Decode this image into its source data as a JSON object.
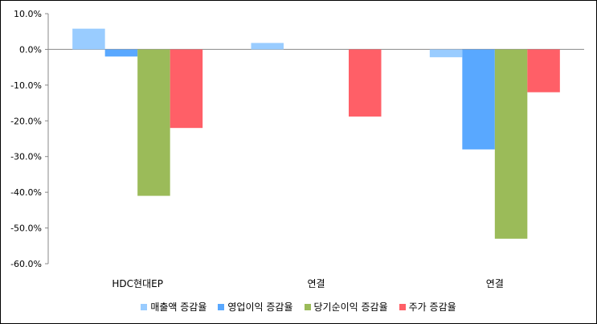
{
  "chart_data": {
    "type": "bar",
    "categories": [
      "HDC현대EP",
      "연결",
      "연결"
    ],
    "series": [
      {
        "name": "매출액 증감율",
        "color": "#99ccff",
        "values": [
          5.8,
          1.8,
          -2.2
        ]
      },
      {
        "name": "영업이익 증감율",
        "color": "#59a8ff",
        "values": [
          -2.0,
          0.0,
          -28.0
        ]
      },
      {
        "name": "당기순이익 증감율",
        "color": "#9bbb59",
        "values": [
          -41.0,
          0.0,
          -53.0
        ]
      },
      {
        "name": "주가 증감율",
        "color": "#ff5f67",
        "values": [
          -22.0,
          -18.8,
          -12.0
        ]
      }
    ],
    "ylim": [
      -60,
      10
    ],
    "yticks": [
      "10.0%",
      "0.0%",
      "-10.0%",
      "-20.0%",
      "-30.0%",
      "-40.0%",
      "-50.0%",
      "-60.0%"
    ],
    "grid": false,
    "legend": "bottom"
  }
}
